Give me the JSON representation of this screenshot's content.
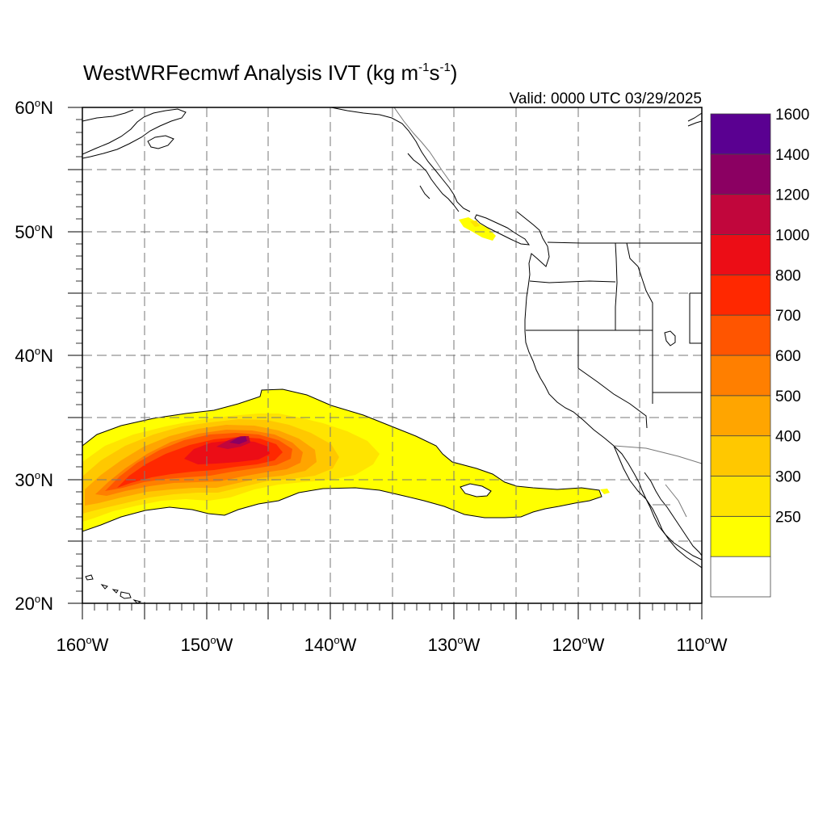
{
  "title": {
    "main": "WestWRFecmwf Analysis IVT (kg m",
    "exp1": "-1",
    "mid": "s",
    "exp2": "-1",
    "close": ")"
  },
  "valid_text": "Valid: 0000 UTC 03/29/2025",
  "lat_labels": [
    {
      "num": "60",
      "deg": "o",
      "hem": "N"
    },
    {
      "num": "50",
      "deg": "o",
      "hem": "N"
    },
    {
      "num": "40",
      "deg": "o",
      "hem": "N"
    },
    {
      "num": "30",
      "deg": "o",
      "hem": "N"
    },
    {
      "num": "20",
      "deg": "o",
      "hem": "N"
    }
  ],
  "lon_labels": [
    {
      "num": "160",
      "deg": "o",
      "hem": "W"
    },
    {
      "num": "150",
      "deg": "o",
      "hem": "W"
    },
    {
      "num": "140",
      "deg": "o",
      "hem": "W"
    },
    {
      "num": "130",
      "deg": "o",
      "hem": "W"
    },
    {
      "num": "120",
      "deg": "o",
      "hem": "W"
    },
    {
      "num": "110",
      "deg": "o",
      "hem": "W"
    }
  ],
  "colorbar": {
    "levels": [
      {
        "label": "",
        "color": "#ffffff"
      },
      {
        "label": "250",
        "color": "#ffff00"
      },
      {
        "label": "300",
        "color": "#ffe400"
      },
      {
        "label": "400",
        "color": "#ffc800"
      },
      {
        "label": "500",
        "color": "#ffa500"
      },
      {
        "label": "600",
        "color": "#ff7f00"
      },
      {
        "label": "700",
        "color": "#ff5500"
      },
      {
        "label": "800",
        "color": "#ff2800"
      },
      {
        "label": "1000",
        "color": "#ec0d16"
      },
      {
        "label": "1200",
        "color": "#c1063c"
      },
      {
        "label": "1400",
        "color": "#8b0062"
      },
      {
        "label": "1600",
        "color": "#5a0091"
      }
    ]
  }
}
